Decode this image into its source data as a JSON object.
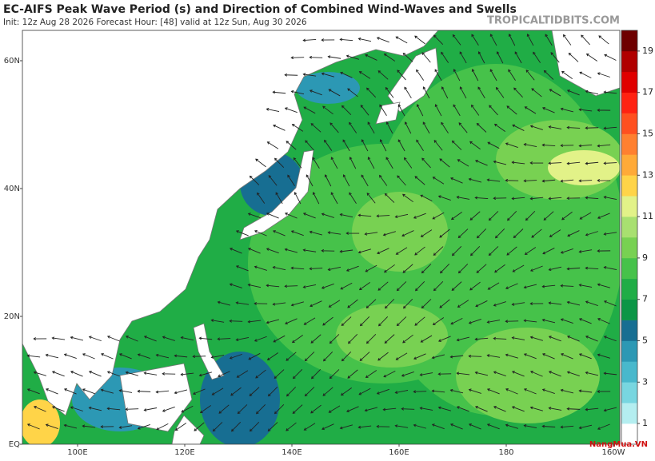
{
  "header": {
    "title": "EC-AIFS Peak Wave Period (s) and Direction of Combined Wind-Waves and Swells",
    "subtitle": "Init: 12z Aug 28 2026   Forecast Hour: [48]   valid at 12z Sun, Aug 30 2026",
    "brand": "TROPICALTIDBITS.COM"
  },
  "map": {
    "lat_labels": [
      {
        "value": 60,
        "label": "60N"
      },
      {
        "value": 40,
        "label": "40N"
      },
      {
        "value": 20,
        "label": "20N"
      },
      {
        "value": 0,
        "label": "EQ"
      }
    ],
    "lon_labels": [
      {
        "value": 100,
        "label": "100E"
      },
      {
        "value": 120,
        "label": "120E"
      },
      {
        "value": 140,
        "label": "140E"
      },
      {
        "value": 160,
        "label": "160E"
      },
      {
        "value": 180,
        "label": "180"
      },
      {
        "value": 200,
        "label": "160W"
      }
    ]
  },
  "colorbar": {
    "range": [
      0,
      20
    ],
    "ticks": [
      1,
      3,
      5,
      7,
      9,
      11,
      13,
      15,
      17,
      19
    ],
    "colors": [
      "#ffffff",
      "#b4eef0",
      "#78d6e0",
      "#48b8cc",
      "#2c98b4",
      "#176e92",
      "#0b9646",
      "#20ad46",
      "#46c24a",
      "#78d152",
      "#a8e070",
      "#e2f288",
      "#ffd448",
      "#ffaa38",
      "#ff8030",
      "#ff5020",
      "#ff2212",
      "#e00000",
      "#b00000",
      "#6e0000"
    ]
  },
  "watermark": "NangMua.VN"
}
